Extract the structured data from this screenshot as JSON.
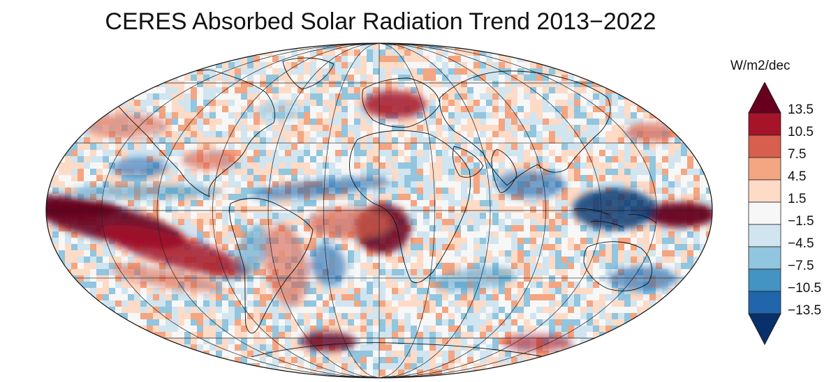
{
  "title": "CERES Absorbed Solar Radiation Trend 2013−2022",
  "colorbar": {
    "units": "W/m2/dec",
    "ticks": [
      "13.5",
      "10.5",
      "7.5",
      "4.5",
      "1.5",
      "−1.5",
      "−4.5",
      "−7.5",
      "−10.5",
      "−13.5"
    ],
    "colors_top_to_bottom": [
      "#67001f",
      "#a51429",
      "#d6604d",
      "#f4a582",
      "#fddbc7",
      "#f7f7f7",
      "#d1e5f0",
      "#92c5de",
      "#4393c3",
      "#2166ac",
      "#08306b"
    ]
  },
  "map": {
    "projection": "Mollweide",
    "graticule_lat_step_deg": 30,
    "graticule_lon_step_deg": 30,
    "field": "absorbed solar radiation trend"
  }
}
